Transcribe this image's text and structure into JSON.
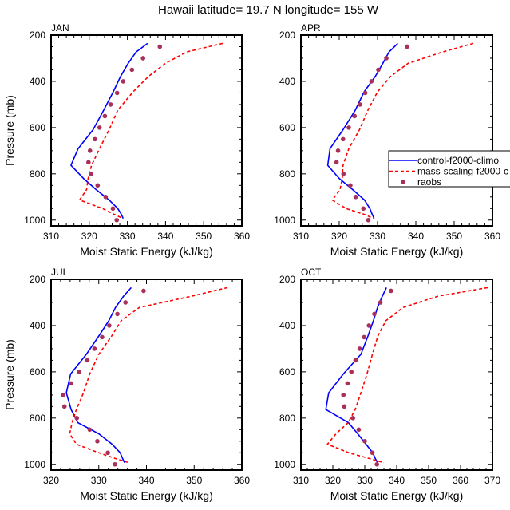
{
  "figure_title": "Hawaii  latitude= 19.7 N longitude= 155 W",
  "legend": {
    "entries": [
      {
        "name": "control-f2000-climo",
        "style": "solid",
        "color": "#0000FF"
      },
      {
        "name": "mass-scaling-f2000-c",
        "style": "dashed",
        "color": "#FF0000"
      },
      {
        "name": "raobs",
        "style": "marker",
        "color": "#A8305A"
      }
    ],
    "placement": "inside APR panel, lower-right"
  },
  "chart_data": [
    {
      "type": "line",
      "title": "JAN",
      "xlabel": "Moist Static Energy (kJ/kg)",
      "ylabel": "Pressure (mb)",
      "xlim": [
        310,
        360
      ],
      "ylim": [
        1025,
        200
      ],
      "y_inverted": true,
      "xticks": [
        310,
        320,
        330,
        340,
        350,
        360
      ],
      "yticks": [
        200,
        400,
        600,
        800,
        1000
      ],
      "grid": false,
      "series": [
        {
          "name": "control-f2000-climo",
          "color": "#0000FF",
          "style": "solid",
          "pressure": [
            236,
            273,
            322,
            379,
            445,
            524,
            609,
            691,
            763,
            820,
            868,
            913,
            950,
            975,
            993
          ],
          "values": [
            335.3,
            332.3,
            330.2,
            328.2,
            326.3,
            323.8,
            321.0,
            317.1,
            315.2,
            318.5,
            321.8,
            325.2,
            327.5,
            328.4,
            328.9
          ]
        },
        {
          "name": "mass-scaling-f2000-c",
          "color": "#FF0000",
          "style": "dashed",
          "pressure": [
            236,
            273,
            322,
            379,
            445,
            524,
            609,
            691,
            763,
            820,
            868,
            913,
            950,
            975,
            993
          ],
          "values": [
            355.0,
            345.5,
            340.0,
            335.5,
            331.5,
            327.5,
            325.2,
            322.7,
            320.6,
            319.7,
            319.3,
            317.5,
            323.5,
            326.5,
            328.8
          ]
        },
        {
          "name": "raobs",
          "color": "#A8305A",
          "style": "marker",
          "pressure": [
            250,
            300,
            350,
            400,
            450,
            500,
            550,
            600,
            650,
            700,
            750,
            800,
            850,
            900,
            950,
            1000
          ],
          "values": [
            338.5,
            334.1,
            331.2,
            328.9,
            327.3,
            325.6,
            324.1,
            322.7,
            321.5,
            320.2,
            319.8,
            320.5,
            322.2,
            324.3,
            326.2,
            327.2
          ]
        }
      ]
    },
    {
      "type": "line",
      "title": "APR",
      "xlabel": "Moist Static Energy (kJ/kg)",
      "ylabel": "",
      "xlim": [
        310,
        360
      ],
      "ylim": [
        1025,
        200
      ],
      "y_inverted": true,
      "xticks": [
        310,
        320,
        330,
        340,
        350,
        360
      ],
      "yticks": [
        200,
        400,
        600,
        800,
        1000
      ],
      "grid": false,
      "series": [
        {
          "name": "control-f2000-climo",
          "color": "#0000FF",
          "style": "solid",
          "pressure": [
            236,
            273,
            322,
            379,
            445,
            524,
            609,
            691,
            763,
            820,
            868,
            913,
            950,
            975,
            993
          ],
          "values": [
            335.3,
            333.0,
            331.4,
            329.4,
            326.5,
            324.2,
            321.0,
            317.6,
            317.0,
            320.0,
            323.5,
            326.6,
            328.0,
            328.6,
            329.1
          ]
        },
        {
          "name": "mass-scaling-f2000-c",
          "color": "#FF0000",
          "style": "dashed",
          "pressure": [
            236,
            273,
            322,
            379,
            445,
            524,
            609,
            691,
            763,
            820,
            868,
            913,
            950,
            975,
            993
          ],
          "values": [
            355.0,
            347.0,
            338.0,
            333.4,
            330.0,
            327.5,
            325.3,
            322.5,
            321.0,
            320.8,
            320.2,
            318.2,
            321.8,
            326.5,
            328.9
          ]
        },
        {
          "name": "raobs",
          "color": "#A8305A",
          "style": "marker",
          "pressure": [
            250,
            300,
            350,
            400,
            450,
            500,
            550,
            600,
            650,
            700,
            750,
            800,
            850,
            900,
            950,
            1000
          ],
          "values": [
            337.7,
            332.3,
            330.2,
            328.4,
            326.8,
            325.4,
            324.0,
            322.5,
            321.0,
            319.7,
            319.3,
            321.1,
            322.9,
            324.3,
            326.3,
            327.6
          ]
        }
      ]
    },
    {
      "type": "line",
      "title": "JUL",
      "xlabel": "Moist Static Energy (kJ/kg)",
      "ylabel": "Pressure (mb)",
      "xlim": [
        320,
        360
      ],
      "ylim": [
        1025,
        200
      ],
      "y_inverted": true,
      "xticks": [
        320,
        330,
        340,
        350,
        360
      ],
      "yticks": [
        200,
        400,
        600,
        800,
        1000
      ],
      "grid": false,
      "series": [
        {
          "name": "control-f2000-climo",
          "color": "#0000FF",
          "style": "solid",
          "pressure": [
            236,
            273,
            322,
            379,
            445,
            524,
            609,
            691,
            763,
            820,
            868,
            913,
            950,
            975,
            993
          ],
          "values": [
            336.8,
            335.2,
            333.5,
            332.1,
            330.0,
            327.4,
            324.1,
            323.2,
            324.2,
            325.6,
            330.0,
            332.8,
            334.5,
            335.0,
            335.4
          ]
        },
        {
          "name": "mass-scaling-f2000-c",
          "color": "#FF0000",
          "style": "dashed",
          "pressure": [
            236,
            273,
            322,
            379,
            445,
            524,
            609,
            691,
            763,
            820,
            868,
            913,
            950,
            975,
            993
          ],
          "values": [
            357.0,
            349.5,
            338.5,
            334.7,
            332.7,
            330.0,
            328.1,
            326.8,
            325.3,
            324.4,
            323.9,
            325.3,
            330.0,
            333.5,
            336.3
          ]
        },
        {
          "name": "raobs",
          "color": "#A8305A",
          "style": "marker",
          "pressure": [
            250,
            300,
            350,
            400,
            450,
            500,
            550,
            600,
            650,
            700,
            750,
            800,
            850,
            900,
            950,
            1000
          ],
          "values": [
            339.4,
            335.6,
            333.9,
            332.2,
            330.7,
            329.1,
            327.6,
            325.9,
            324.2,
            322.5,
            322.8,
            325.4,
            328.1,
            329.7,
            331.9,
            333.4
          ]
        }
      ]
    },
    {
      "type": "line",
      "title": "OCT",
      "xlabel": "Moist Static Energy (kJ/kg)",
      "ylabel": "",
      "xlim": [
        310,
        370
      ],
      "ylim": [
        1025,
        200
      ],
      "y_inverted": true,
      "xticks": [
        310,
        320,
        330,
        340,
        350,
        360,
        370
      ],
      "yticks": [
        200,
        400,
        600,
        800,
        1000
      ],
      "grid": false,
      "series": [
        {
          "name": "control-f2000-climo",
          "color": "#0000FF",
          "style": "solid",
          "pressure": [
            236,
            273,
            322,
            379,
            445,
            524,
            609,
            691,
            763,
            820,
            868,
            913,
            950,
            975,
            993
          ],
          "values": [
            336.8,
            335.5,
            334.0,
            332.7,
            331.0,
            328.8,
            323.3,
            318.7,
            317.8,
            324.9,
            327.8,
            330.4,
            332.5,
            333.3,
            334.0
          ]
        },
        {
          "name": "mass-scaling-f2000-c",
          "color": "#FF0000",
          "style": "dashed",
          "pressure": [
            236,
            273,
            322,
            379,
            445,
            524,
            609,
            691,
            763,
            820,
            868,
            913,
            950,
            975,
            993
          ],
          "values": [
            368.5,
            353.0,
            342.0,
            336.6,
            334.1,
            332.4,
            330.7,
            328.8,
            327.0,
            324.8,
            321.0,
            318.3,
            325.0,
            331.5,
            336.0
          ]
        },
        {
          "name": "raobs",
          "color": "#A8305A",
          "style": "marker",
          "pressure": [
            250,
            300,
            350,
            400,
            450,
            500,
            550,
            600,
            650,
            700,
            750,
            800,
            850,
            900,
            950,
            1000
          ],
          "values": [
            338.2,
            334.9,
            333.0,
            331.3,
            329.8,
            328.4,
            327.1,
            325.8,
            324.6,
            323.3,
            323.6,
            326.3,
            328.1,
            330.0,
            332.4,
            333.8
          ]
        }
      ]
    }
  ]
}
